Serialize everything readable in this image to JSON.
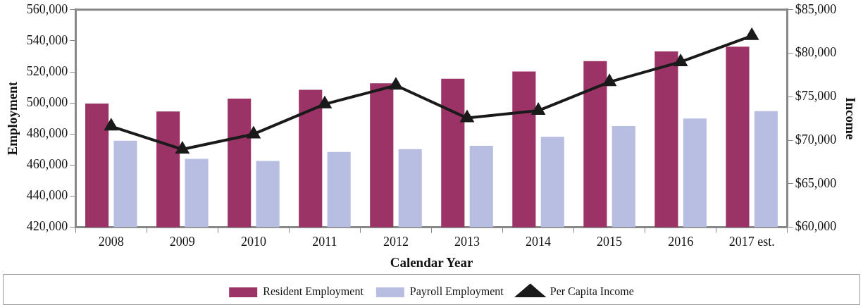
{
  "chart_data": {
    "type": "bar",
    "xlabel": "Calendar Year",
    "ylabel": "Employment",
    "y2label": "Income",
    "categories": [
      "2008",
      "2009",
      "2010",
      "2011",
      "2012",
      "2013",
      "2014",
      "2015",
      "2016",
      "2017 est."
    ],
    "series": [
      {
        "name": "Resident Employment",
        "color": "#9b3366",
        "values": [
          499600,
          494500,
          502800,
          508500,
          512600,
          515600,
          520200,
          526900,
          533200,
          536200
        ]
      },
      {
        "name": "Payroll Employment",
        "color": "#b8bde2",
        "values": [
          475700,
          464000,
          462700,
          468400,
          470300,
          472400,
          478200,
          485100,
          490000,
          494700
        ]
      },
      {
        "name": "Per Capita Income",
        "type": "line",
        "axis": "y2",
        "color": "#1a1a1a",
        "marker": "triangle",
        "line_style": "solid",
        "values": [
          71600,
          68950,
          70700,
          74150,
          76300,
          72550,
          73400,
          76700,
          79000,
          82000
        ]
      }
    ],
    "ylim": [
      420000,
      560000
    ],
    "yticks": [
      {
        "value": 420000,
        "label": "420,000"
      },
      {
        "value": 440000,
        "label": "440,000"
      },
      {
        "value": 460000,
        "label": "460,000"
      },
      {
        "value": 480000,
        "label": "480,000"
      },
      {
        "value": 500000,
        "label": "500,000"
      },
      {
        "value": 520000,
        "label": "520,000"
      },
      {
        "value": 540000,
        "label": "540,000"
      },
      {
        "value": 560000,
        "label": "560,000"
      }
    ],
    "y2lim": [
      60000,
      85000
    ],
    "y2ticks": [
      {
        "value": 60000,
        "label": "$60,000"
      },
      {
        "value": 65000,
        "label": "$65,000"
      },
      {
        "value": 70000,
        "label": "$70,000"
      },
      {
        "value": 75000,
        "label": "$75,000"
      },
      {
        "value": 80000,
        "label": "$80,000"
      },
      {
        "value": 85000,
        "label": "$85,000"
      }
    ],
    "grid": false,
    "legend": "bottom"
  }
}
